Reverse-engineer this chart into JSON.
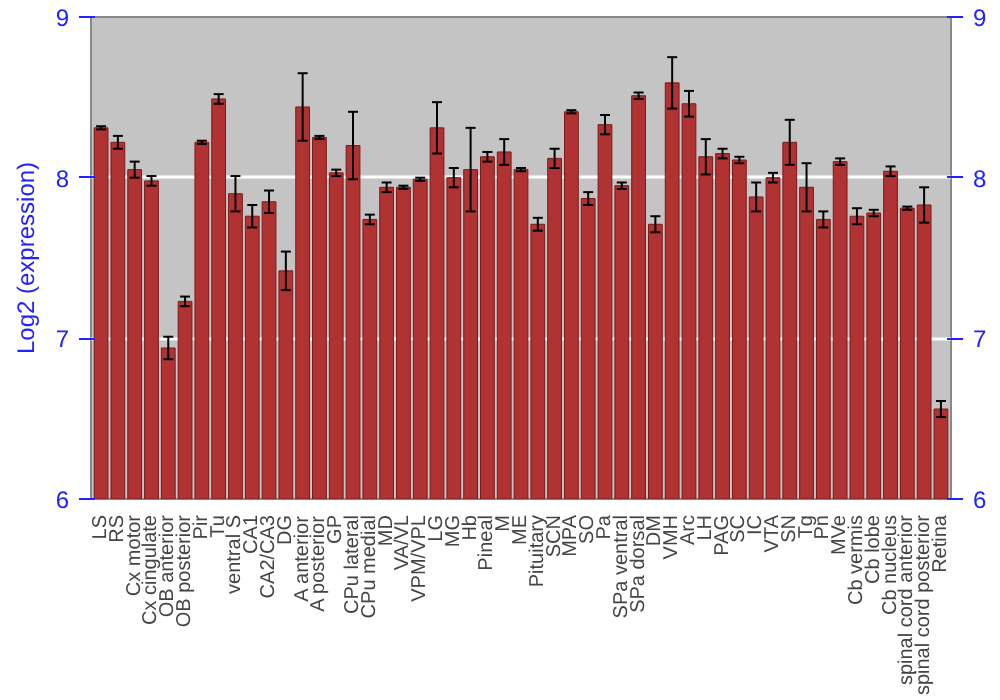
{
  "chart_data": {
    "type": "bar",
    "ylabel": "Log2 (expression)",
    "categories": [
      "LS",
      "RS",
      "Cx motor",
      "Cx cingulate",
      "OB anterior",
      "OB posterior",
      "Pir",
      "Tu",
      "ventral S",
      "CA1",
      "CA2/CA3",
      "DG",
      "A anterior",
      "A posterior",
      "GP",
      "CPu lateral",
      "CPu medial",
      "MD",
      "VA/VL",
      "VPM/VPL",
      "LG",
      "MG",
      "Hb",
      "Pineal",
      "M",
      "ME",
      "Pituitary",
      "SCN",
      "MPA",
      "SO",
      "Pa",
      "SPa ventral",
      "SPa dorsal",
      "DM",
      "VMH",
      "Arc",
      "LH",
      "PAG",
      "SC",
      "IC",
      "VTA",
      "SN",
      "Tg",
      "Pn",
      "MVe",
      "Cb vermis",
      "Cb lobe",
      "Cb nucleus",
      "spinal cord anterior",
      "spinal cord posterior",
      "Retina"
    ],
    "values": [
      8.31,
      8.22,
      8.05,
      7.98,
      6.94,
      7.23,
      8.22,
      8.49,
      7.9,
      7.76,
      7.85,
      7.42,
      8.44,
      8.25,
      8.03,
      8.2,
      7.74,
      7.94,
      7.94,
      7.99,
      8.31,
      8.0,
      8.05,
      8.13,
      8.16,
      8.05,
      7.71,
      8.12,
      8.41,
      7.87,
      8.33,
      7.95,
      8.51,
      7.71,
      8.59,
      8.46,
      8.13,
      8.15,
      8.11,
      7.88,
      8.0,
      8.22,
      7.94,
      7.74,
      8.1,
      7.76,
      7.78,
      8.04,
      7.81,
      7.83,
      6.56
    ],
    "errors": [
      0.01,
      0.04,
      0.05,
      0.03,
      0.07,
      0.03,
      0.01,
      0.03,
      0.11,
      0.07,
      0.07,
      0.12,
      0.21,
      0.01,
      0.02,
      0.21,
      0.03,
      0.03,
      0.01,
      0.01,
      0.16,
      0.06,
      0.26,
      0.03,
      0.08,
      0.01,
      0.04,
      0.06,
      0.01,
      0.04,
      0.06,
      0.02,
      0.02,
      0.05,
      0.16,
      0.08,
      0.11,
      0.03,
      0.02,
      0.09,
      0.03,
      0.14,
      0.15,
      0.05,
      0.02,
      0.05,
      0.02,
      0.03,
      0.01,
      0.11,
      0.05
    ],
    "color": "#b03232",
    "ylim": [
      6,
      9
    ],
    "yticks": [
      6,
      7,
      8,
      9
    ],
    "y2lim": [
      6,
      9
    ],
    "y2ticks": [
      6,
      7,
      8,
      9
    ],
    "grid": "y"
  }
}
